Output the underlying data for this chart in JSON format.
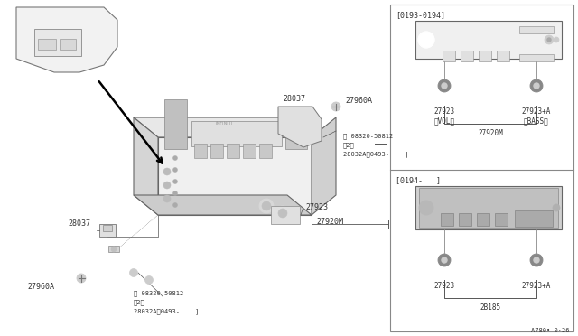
{
  "bg_color": "#ffffff",
  "fig_width": 6.4,
  "fig_height": 3.72,
  "dpi": 100,
  "lc": "#555555",
  "tc": "#333333",
  "top_label": "[0193-0194]",
  "bottom_label": "[0194-   ]",
  "vol_label": "27923\n（VOL）",
  "bass_label": "27923+A\n（BASS）",
  "radio1_ref": "27920M",
  "knob_left_bot": "27923",
  "knob_right_bot": "27923+A",
  "radio2_ref": "2B185",
  "bottom_right": "A780• 0·26",
  "main_28037_top": "28037",
  "main_27960A_top": "27960A",
  "main_screw_top1": "Ⓜ 08320-50812",
  "main_screw_top2": "（2）",
  "main_screw_top3": "28032A　0493-    ]",
  "main_28037_bot": "28037",
  "main_27960A_bot": "27960A",
  "main_screw_bot1": "Ⓜ 08320-50812",
  "main_screw_bot2": "（2）",
  "main_screw_bot3": "28032A　0493-    ]",
  "main_27920M": "27920M",
  "main_27923": "27923"
}
